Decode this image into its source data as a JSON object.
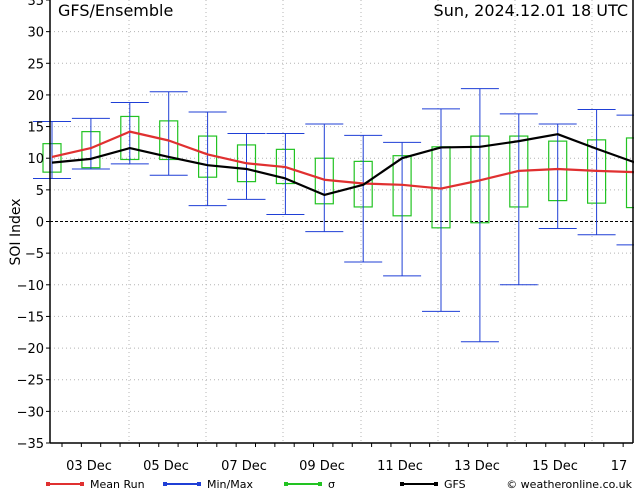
{
  "header": {
    "title": "GFS/Ensemble",
    "datetime": "Sun, 2024.12.01   18 UTC"
  },
  "footer": {
    "credit": "© weatheronline.co.uk"
  },
  "chart_data": {
    "type": "line",
    "ylabel": "SOI Index",
    "ylim": [
      -35,
      35
    ],
    "yticks": [
      -35,
      -30,
      -25,
      -20,
      -15,
      -10,
      -5,
      0,
      5,
      10,
      15,
      20,
      25,
      30,
      35
    ],
    "xtick_labels": [
      "03 Dec",
      "05 Dec",
      "07 Dec",
      "09 Dec",
      "11 Dec",
      "13 Dec",
      "15 Dec",
      "17"
    ],
    "grid": true,
    "legend_position": "bottom",
    "legend": [
      {
        "key": "mean",
        "label": "Mean Run",
        "color": "#e03030"
      },
      {
        "key": "minmax",
        "label": "Min/Max",
        "color": "#1f3fd6"
      },
      {
        "key": "sigma",
        "label": "σ",
        "color": "#22c322"
      },
      {
        "key": "gfs",
        "label": "GFS",
        "color": "#000000"
      }
    ],
    "steps": [
      0,
      1,
      2,
      3,
      4,
      5,
      6,
      7,
      8,
      9,
      10,
      11,
      12,
      13,
      14,
      15
    ],
    "x_hours_start": 1,
    "series": [
      {
        "name": "GFS",
        "values": [
          9.3,
          9.9,
          11.6,
          10.2,
          8.9,
          8.3,
          6.8,
          4.2,
          5.8,
          10.0,
          11.7,
          11.8,
          12.7,
          13.8,
          11.5,
          9.3
        ]
      },
      {
        "name": "Mean Run",
        "values": [
          10.2,
          11.6,
          14.2,
          12.8,
          10.6,
          9.2,
          8.6,
          6.6,
          6.0,
          5.8,
          5.2,
          6.5,
          8.0,
          8.3,
          8.0,
          7.8
        ]
      }
    ],
    "minmax": [
      {
        "min": 6.8,
        "max": 15.8
      },
      {
        "min": 8.3,
        "max": 16.3
      },
      {
        "min": 9.1,
        "max": 18.8
      },
      {
        "min": 7.3,
        "max": 20.5
      },
      {
        "min": 2.5,
        "max": 17.3
      },
      {
        "min": 3.5,
        "max": 13.9
      },
      {
        "min": 1.1,
        "max": 13.9
      },
      {
        "min": -1.6,
        "max": 15.4
      },
      {
        "min": -6.4,
        "max": 13.6
      },
      {
        "min": -8.6,
        "max": 12.5
      },
      {
        "min": -14.2,
        "max": 17.8
      },
      {
        "min": -19.0,
        "max": 21.0
      },
      {
        "min": -10.0,
        "max": 17.0
      },
      {
        "min": -1.1,
        "max": 15.4
      },
      {
        "min": -2.1,
        "max": 17.7
      },
      {
        "min": -3.7,
        "max": 16.8
      }
    ],
    "sigma": [
      {
        "low": 7.8,
        "high": 12.3
      },
      {
        "low": 8.5,
        "high": 14.2
      },
      {
        "low": 9.8,
        "high": 16.6
      },
      {
        "low": 9.8,
        "high": 15.9
      },
      {
        "low": 7.0,
        "high": 13.5
      },
      {
        "low": 6.3,
        "high": 12.1
      },
      {
        "low": 6.0,
        "high": 11.4
      },
      {
        "low": 2.8,
        "high": 10.0
      },
      {
        "low": 2.3,
        "high": 9.5
      },
      {
        "low": 0.9,
        "high": 10.4
      },
      {
        "low": -1.0,
        "high": 11.8
      },
      {
        "low": -0.2,
        "high": 13.5
      },
      {
        "low": 2.3,
        "high": 13.5
      },
      {
        "low": 3.3,
        "high": 12.7
      },
      {
        "low": 2.9,
        "high": 12.9
      },
      {
        "low": 2.2,
        "high": 13.2
      }
    ]
  }
}
